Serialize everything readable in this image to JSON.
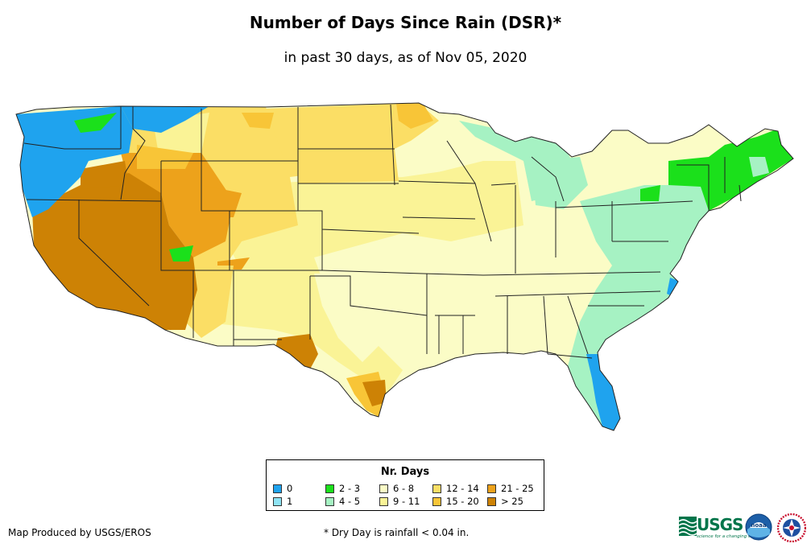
{
  "title": "Number of Days Since Rain (DSR)*",
  "subtitle": "in past 30 days, as of Nov 05, 2020",
  "legend": {
    "title": "Nr. Days",
    "items": [
      {
        "label": "0",
        "color": "#1fa3ee"
      },
      {
        "label": "1",
        "color": "#8fe4f4"
      },
      {
        "label": "2 - 3",
        "color": "#1be01b"
      },
      {
        "label": "4 - 5",
        "color": "#a6f2c3"
      },
      {
        "label": "6 - 8",
        "color": "#fbfcc6"
      },
      {
        "label": "9 - 11",
        "color": "#faf396"
      },
      {
        "label": "12 - 14",
        "color": "#fbde65"
      },
      {
        "label": "15 - 20",
        "color": "#f8c537"
      },
      {
        "label": "21 - 25",
        "color": "#eda21b"
      },
      {
        "label": "> 25",
        "color": "#cd8205"
      }
    ]
  },
  "credit": "Map Produced by USGS/EROS",
  "note": "* Dry Day is rainfall < 0.04 in.",
  "logos": {
    "usgs_text": "USGS",
    "usgs_tagline": "science for a changing world",
    "noaa_text": "noaa"
  }
}
